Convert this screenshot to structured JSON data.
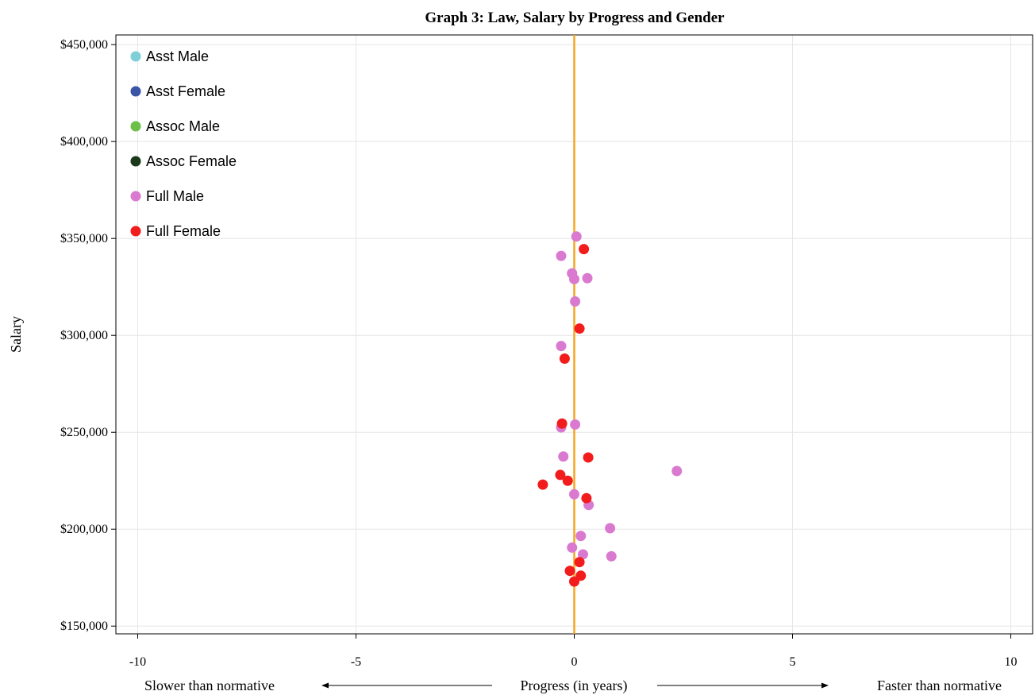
{
  "chart_data": {
    "type": "scatter",
    "title": "Graph 3: Law, Salary by Progress and Gender",
    "xlabel": "Progress (in years)",
    "ylabel": "Salary",
    "x_left_note": "Slower than normative",
    "x_right_note": "Faster than normative",
    "xlim": [
      -10.5,
      10.5
    ],
    "ylim": [
      146000,
      455000
    ],
    "x_ticks": [
      -10,
      -5,
      0,
      5,
      10
    ],
    "x_tick_labels": [
      "-10",
      "-5",
      "0",
      "5",
      "10"
    ],
    "y_ticks": [
      150000,
      200000,
      250000,
      300000,
      350000,
      400000,
      450000
    ],
    "y_tick_labels": [
      "$150,000",
      "$200,000",
      "$250,000",
      "$300,000",
      "$350,000",
      "$400,000",
      "$450,000"
    ],
    "grid": true,
    "legend_position": "top-left",
    "reference_line": {
      "x": 0,
      "color": "#f5a623"
    },
    "series": [
      {
        "name": "Asst Male",
        "color": "#7fcfd9",
        "points": []
      },
      {
        "name": "Asst Female",
        "color": "#3a55a6",
        "points": []
      },
      {
        "name": "Assoc Male",
        "color": "#6cc04a",
        "points": []
      },
      {
        "name": "Assoc Female",
        "color": "#1a3a1a",
        "points": []
      },
      {
        "name": "Full Male",
        "color": "#d97ad0",
        "points": [
          [
            0.05,
            351000
          ],
          [
            -0.3,
            341000
          ],
          [
            -0.05,
            332000
          ],
          [
            0.0,
            329000
          ],
          [
            0.3,
            329500
          ],
          [
            0.02,
            317500
          ],
          [
            -0.3,
            294500
          ],
          [
            -0.3,
            252500
          ],
          [
            0.02,
            254000
          ],
          [
            -0.25,
            237500
          ],
          [
            2.35,
            230000
          ],
          [
            0.0,
            218000
          ],
          [
            0.33,
            212500
          ],
          [
            0.82,
            200500
          ],
          [
            0.15,
            196500
          ],
          [
            -0.05,
            190500
          ],
          [
            0.2,
            187000
          ],
          [
            0.85,
            186000
          ]
        ]
      },
      {
        "name": "Full Female",
        "color": "#f21c1c",
        "points": [
          [
            0.22,
            344500
          ],
          [
            0.12,
            303500
          ],
          [
            -0.22,
            288000
          ],
          [
            -0.28,
            254500
          ],
          [
            0.32,
            237000
          ],
          [
            -0.32,
            228000
          ],
          [
            -0.15,
            225000
          ],
          [
            -0.72,
            223000
          ],
          [
            0.28,
            216000
          ],
          [
            0.12,
            183000
          ],
          [
            -0.1,
            178500
          ],
          [
            0.15,
            176000
          ],
          [
            0.0,
            173000
          ]
        ]
      }
    ]
  }
}
